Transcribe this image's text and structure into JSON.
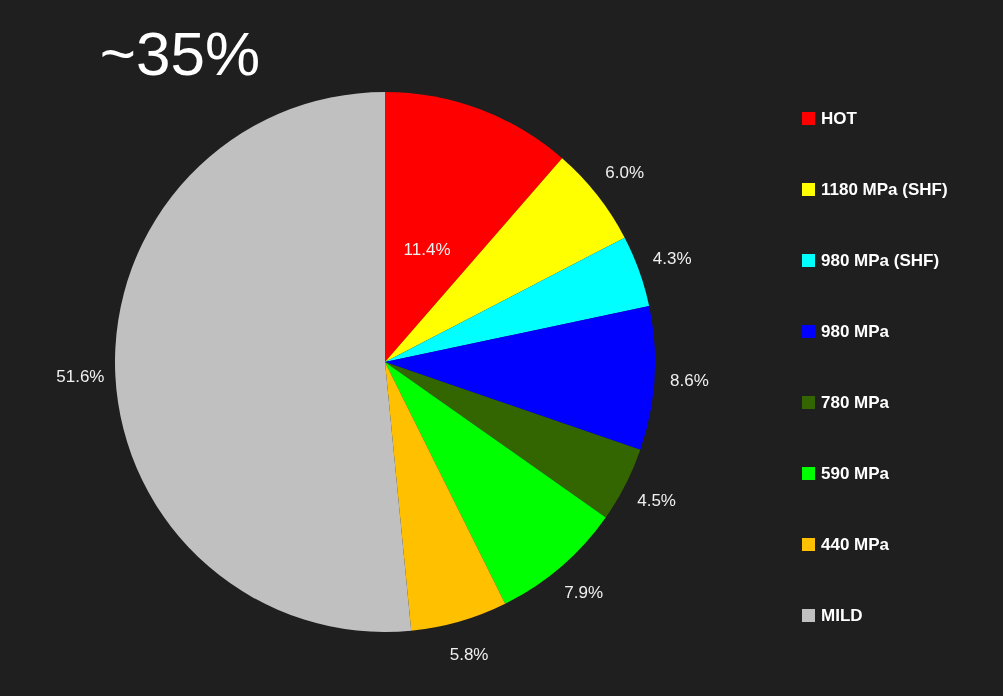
{
  "chart_data": {
    "type": "pie",
    "categories": [
      "HOT",
      "1180 MPa (SHF)",
      "980 MPa (SHF)",
      "980 MPa",
      "780 MPa",
      "590 MPa",
      "440 MPa",
      "MILD"
    ],
    "values": [
      11.4,
      6.0,
      4.3,
      8.6,
      4.5,
      7.9,
      5.8,
      51.6
    ],
    "colors": [
      "#ff0000",
      "#ffff00",
      "#00ffff",
      "#0000ff",
      "#336600",
      "#00ff00",
      "#ffc000",
      "#c0c0c0"
    ],
    "value_labels": [
      "11.4%",
      "6.0%",
      "4.3%",
      "8.6%",
      "4.5%",
      "7.9%",
      "5.8%",
      "51.6%"
    ],
    "annotations": [
      "~35%"
    ],
    "legend": "right"
  }
}
